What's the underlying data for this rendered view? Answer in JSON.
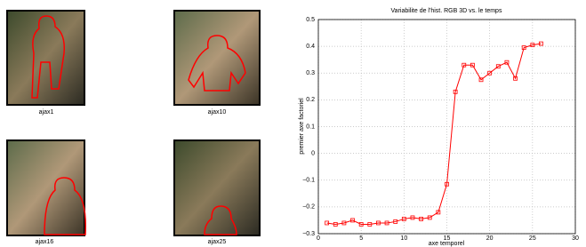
{
  "images": [
    {
      "label": "ajax1"
    },
    {
      "label": "ajax10"
    },
    {
      "label": "ajax16"
    },
    {
      "label": "ajax25"
    }
  ],
  "chart_data": {
    "type": "line",
    "title": "Variabilite de l'hist. RGB 3D  vs. le temps",
    "xlabel": "axe temporel",
    "ylabel": "premier axe factoriel",
    "x": [
      1,
      2,
      3,
      4,
      5,
      6,
      7,
      8,
      9,
      10,
      11,
      12,
      13,
      14,
      15,
      16,
      17,
      18,
      19,
      20,
      21,
      22,
      23,
      24,
      25,
      26
    ],
    "series": [
      {
        "color": "#ff0000",
        "values": [
          -0.26,
          -0.265,
          -0.26,
          -0.25,
          -0.265,
          -0.265,
          -0.26,
          -0.26,
          -0.255,
          -0.245,
          -0.24,
          -0.245,
          -0.24,
          -0.22,
          -0.115,
          0.23,
          0.33,
          0.33,
          0.275,
          0.3,
          0.325,
          0.34,
          0.28,
          0.395,
          0.405,
          0.41
        ]
      }
    ],
    "xlim": [
      0,
      30
    ],
    "xticks": [
      0,
      5,
      10,
      15,
      20,
      25,
      30
    ],
    "ylim": [
      -0.3,
      0.5
    ],
    "yticks": [
      {
        "value": -0.3,
        "label": "−0.3"
      },
      {
        "value": -0.2,
        "label": "−0.2"
      },
      {
        "value": -0.1,
        "label": "−0.1"
      },
      0,
      0.1,
      0.2,
      0.3,
      0.4,
      0.5
    ],
    "grid": true
  }
}
